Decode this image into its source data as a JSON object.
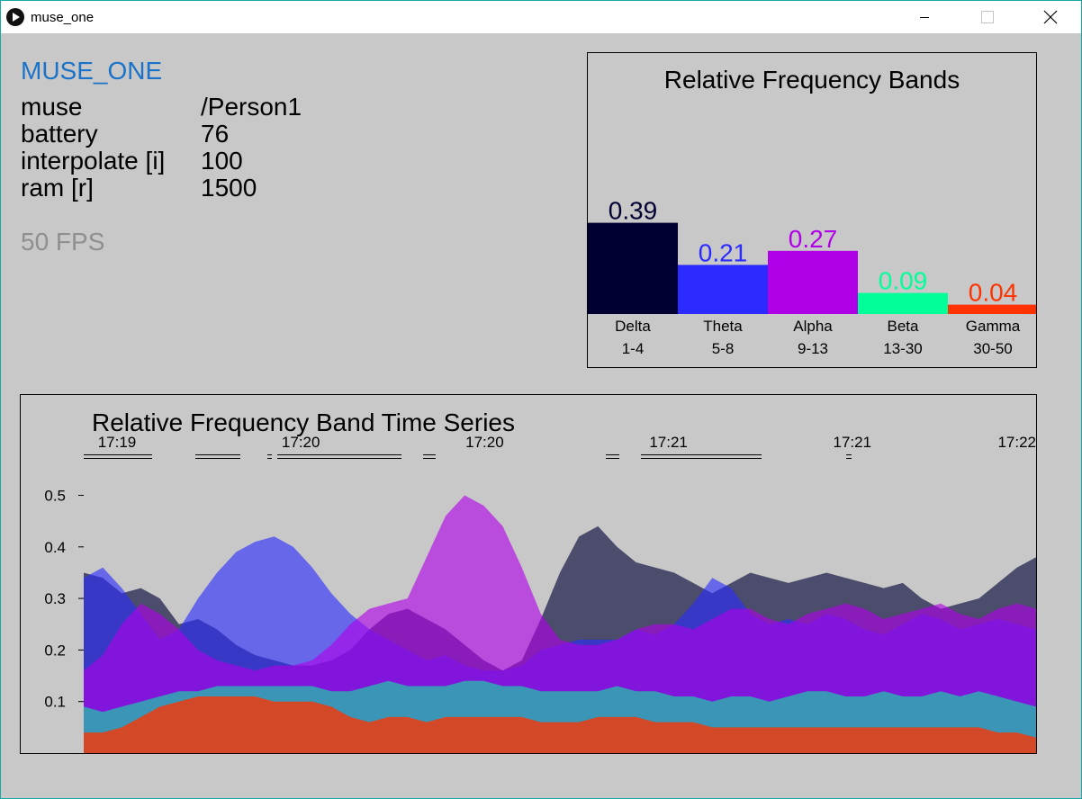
{
  "window": {
    "title": "muse_one"
  },
  "app": {
    "name": "MUSE_ONE",
    "fields": [
      {
        "label": "muse",
        "value": "/Person1"
      },
      {
        "label": "battery",
        "value": "76"
      },
      {
        "label": "interpolate [i]",
        "value": "100"
      },
      {
        "label": "ram [r]",
        "value": "1500"
      }
    ],
    "fps": "50 FPS"
  },
  "colors": {
    "delta": "#000033",
    "theta": "#2b2bff",
    "alpha": "#b000e8",
    "beta": "#00ff99",
    "gamma": "#ff3300"
  },
  "chart_data": [
    {
      "type": "bar",
      "title": "Relative Frequency Bands",
      "categories": [
        "Delta",
        "Theta",
        "Alpha",
        "Beta",
        "Gamma"
      ],
      "ranges": [
        "1-4",
        "5-8",
        "9-13",
        "13-30",
        "30-50"
      ],
      "values": [
        0.39,
        0.21,
        0.27,
        0.09,
        0.04
      ],
      "value_labels": [
        "0.39",
        "0.21",
        "0.27",
        "0.09",
        "0.04"
      ],
      "colors": [
        "#000033",
        "#2b2bff",
        "#b000e8",
        "#00ff99",
        "#ff3300"
      ],
      "ylim": [
        0,
        1
      ]
    },
    {
      "type": "area",
      "title": "Relative Frequency Band Time Series",
      "ylim": [
        0,
        0.55
      ],
      "y_ticks": [
        "0.1",
        "0.2",
        "0.3",
        "0.4",
        "0.5"
      ],
      "time_labels": [
        "17:19",
        "17:20",
        "17:20",
        "17:21",
        "17:21",
        "17:22"
      ],
      "x": [
        0,
        2,
        4,
        6,
        8,
        10,
        12,
        14,
        16,
        18,
        20,
        22,
        24,
        26,
        28,
        30,
        32,
        34,
        36,
        38,
        40,
        42,
        44,
        46,
        48,
        50,
        52,
        54,
        56,
        58,
        60,
        62,
        64,
        66,
        68,
        70,
        72,
        74,
        76,
        78,
        80,
        82,
        84,
        86,
        88,
        90,
        92,
        94,
        96,
        98,
        100
      ],
      "series": [
        {
          "name": "Delta",
          "color": "#000033",
          "values": [
            0.35,
            0.34,
            0.31,
            0.32,
            0.3,
            0.25,
            0.26,
            0.24,
            0.21,
            0.19,
            0.18,
            0.17,
            0.17,
            0.18,
            0.2,
            0.24,
            0.27,
            0.28,
            0.26,
            0.24,
            0.21,
            0.18,
            0.16,
            0.18,
            0.26,
            0.35,
            0.42,
            0.44,
            0.4,
            0.37,
            0.36,
            0.35,
            0.33,
            0.31,
            0.33,
            0.35,
            0.34,
            0.33,
            0.34,
            0.35,
            0.34,
            0.33,
            0.32,
            0.33,
            0.3,
            0.28,
            0.29,
            0.3,
            0.33,
            0.36,
            0.38
          ]
        },
        {
          "name": "Theta",
          "color": "#2b2bff",
          "values": [
            0.34,
            0.36,
            0.32,
            0.27,
            0.22,
            0.24,
            0.3,
            0.35,
            0.39,
            0.41,
            0.42,
            0.4,
            0.36,
            0.31,
            0.27,
            0.24,
            0.22,
            0.2,
            0.18,
            0.19,
            0.17,
            0.16,
            0.16,
            0.17,
            0.2,
            0.21,
            0.22,
            0.22,
            0.22,
            0.24,
            0.23,
            0.25,
            0.29,
            0.34,
            0.32,
            0.27,
            0.25,
            0.26,
            0.25,
            0.27,
            0.26,
            0.24,
            0.23,
            0.25,
            0.27,
            0.26,
            0.24,
            0.25,
            0.26,
            0.25,
            0.24
          ]
        },
        {
          "name": "Alpha",
          "color": "#b000e8",
          "values": [
            0.16,
            0.19,
            0.25,
            0.29,
            0.27,
            0.24,
            0.2,
            0.18,
            0.17,
            0.16,
            0.17,
            0.17,
            0.18,
            0.21,
            0.25,
            0.28,
            0.29,
            0.3,
            0.38,
            0.46,
            0.5,
            0.48,
            0.44,
            0.36,
            0.27,
            0.22,
            0.21,
            0.21,
            0.22,
            0.24,
            0.25,
            0.25,
            0.24,
            0.26,
            0.28,
            0.28,
            0.26,
            0.25,
            0.27,
            0.28,
            0.29,
            0.28,
            0.26,
            0.27,
            0.28,
            0.29,
            0.27,
            0.26,
            0.28,
            0.29,
            0.28
          ]
        },
        {
          "name": "Beta",
          "color": "#00ff99",
          "values": [
            0.09,
            0.08,
            0.09,
            0.1,
            0.11,
            0.12,
            0.12,
            0.13,
            0.13,
            0.13,
            0.13,
            0.13,
            0.13,
            0.12,
            0.12,
            0.13,
            0.14,
            0.13,
            0.13,
            0.13,
            0.14,
            0.14,
            0.13,
            0.13,
            0.12,
            0.12,
            0.12,
            0.12,
            0.13,
            0.12,
            0.12,
            0.11,
            0.11,
            0.1,
            0.11,
            0.11,
            0.1,
            0.11,
            0.12,
            0.12,
            0.11,
            0.11,
            0.12,
            0.11,
            0.11,
            0.12,
            0.11,
            0.12,
            0.11,
            0.1,
            0.09
          ]
        },
        {
          "name": "Gamma",
          "color": "#ff3300",
          "values": [
            0.04,
            0.04,
            0.05,
            0.07,
            0.09,
            0.1,
            0.11,
            0.11,
            0.11,
            0.11,
            0.1,
            0.1,
            0.1,
            0.09,
            0.07,
            0.06,
            0.07,
            0.07,
            0.06,
            0.07,
            0.07,
            0.07,
            0.07,
            0.07,
            0.06,
            0.06,
            0.06,
            0.07,
            0.07,
            0.07,
            0.06,
            0.06,
            0.06,
            0.05,
            0.05,
            0.05,
            0.05,
            0.05,
            0.05,
            0.05,
            0.05,
            0.05,
            0.05,
            0.05,
            0.05,
            0.05,
            0.05,
            0.05,
            0.04,
            0.04,
            0.03
          ]
        }
      ]
    }
  ]
}
